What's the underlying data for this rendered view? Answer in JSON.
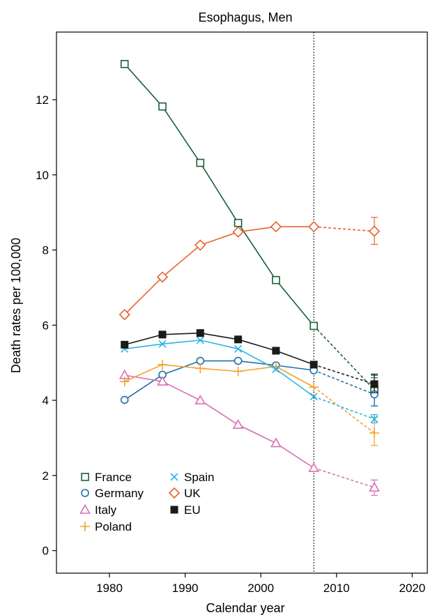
{
  "chart_data": {
    "type": "line",
    "title": "Esophagus, Men",
    "xlabel": "Calendar year",
    "ylabel": "Death rates per 100,000",
    "xlim": [
      1973,
      2022
    ],
    "ylim": [
      -0.6,
      13.8
    ],
    "xticks": [
      1980,
      1990,
      2000,
      2010,
      2020
    ],
    "yticks": [
      0,
      2,
      4,
      6,
      8,
      10,
      12
    ],
    "vline_x": 2007,
    "legend_position": "bottom-left",
    "series": [
      {
        "name": "France",
        "color": "#1b5e38",
        "marker": "square-open",
        "x": [
          1982,
          1987,
          1992,
          1997,
          2002,
          2007
        ],
        "y": [
          12.95,
          11.82,
          10.32,
          8.72,
          7.2,
          5.98
        ],
        "predicted": {
          "x": 2015,
          "y": 4.28,
          "err": [
            3.85,
            4.7
          ]
        }
      },
      {
        "name": "Germany",
        "color": "#1f6fa8",
        "marker": "circle-open",
        "x": [
          1982,
          1987,
          1992,
          1997,
          2002,
          2007
        ],
        "y": [
          4.01,
          4.68,
          5.05,
          5.05,
          4.93,
          4.8
        ],
        "predicted": {
          "x": 2015,
          "y": 4.16,
          "err": [
            3.85,
            4.6
          ]
        }
      },
      {
        "name": "Italy",
        "color": "#d86fb4",
        "marker": "triangle-open",
        "x": [
          1982,
          1987,
          1992,
          1997,
          2002,
          2007
        ],
        "y": [
          4.67,
          4.5,
          4.0,
          3.35,
          2.86,
          2.2
        ],
        "predicted": {
          "x": 2015,
          "y": 1.68,
          "err": [
            1.47,
            1.88
          ]
        }
      },
      {
        "name": "Poland",
        "color": "#f5a030",
        "marker": "plus",
        "x": [
          1982,
          1987,
          1992,
          1997,
          2002,
          2007
        ],
        "y": [
          4.5,
          4.95,
          4.85,
          4.77,
          4.9,
          4.35
        ],
        "predicted": {
          "x": 2015,
          "y": 3.13,
          "err": [
            2.8,
            3.55
          ]
        }
      },
      {
        "name": "Spain",
        "color": "#2ab3e6",
        "marker": "cross",
        "x": [
          1982,
          1987,
          1992,
          1997,
          2002,
          2007
        ],
        "y": [
          5.37,
          5.5,
          5.6,
          5.37,
          4.83,
          4.1
        ],
        "predicted": {
          "x": 2015,
          "y": 3.5,
          "err": [
            3.4,
            3.62
          ]
        }
      },
      {
        "name": "UK",
        "color": "#e8612c",
        "marker": "diamond-open",
        "x": [
          1982,
          1987,
          1992,
          1997,
          2002,
          2007
        ],
        "y": [
          6.28,
          7.28,
          8.13,
          8.48,
          8.62,
          8.62
        ],
        "predicted": {
          "x": 2015,
          "y": 8.5,
          "err": [
            8.15,
            8.87
          ]
        }
      },
      {
        "name": "EU",
        "color": "#1a1a1a",
        "marker": "square-filled",
        "x": [
          1982,
          1987,
          1992,
          1997,
          2002,
          2007
        ],
        "y": [
          5.48,
          5.75,
          5.79,
          5.62,
          5.32,
          4.95
        ],
        "predicted": {
          "x": 2015,
          "y": 4.43,
          "err": [
            4.2,
            4.67
          ]
        }
      }
    ]
  }
}
